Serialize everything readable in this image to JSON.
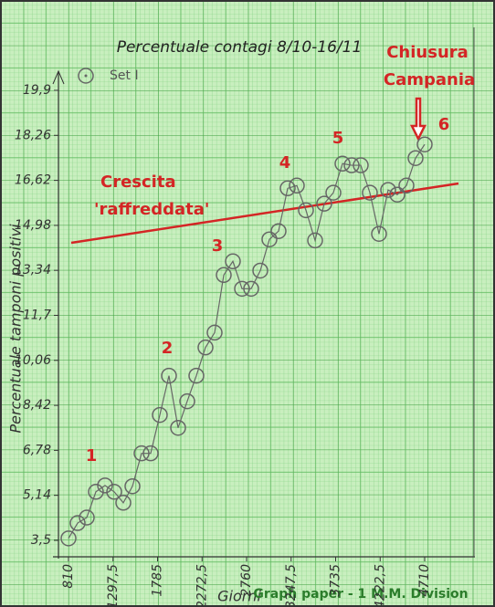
{
  "chart_data": {
    "type": "line",
    "title": "Percentuale contagi 8/10-16/11",
    "x_label": "Giorni",
    "y_label": "Percentuale tamponi positivi",
    "footer": "Graph paper - 1 M.M. Division",
    "annotations": [
      "1",
      "2",
      "3",
      "4",
      "5",
      "6",
      "Crescita",
      "'raffreddata'",
      "Chiusura",
      "Campania"
    ],
    "xlim": [
      700,
      5260
    ],
    "ylim": [
      2.9,
      19.9
    ],
    "xticks": [
      810,
      {
        "value": 1297.5,
        "label": "1297,5"
      },
      1785,
      {
        "value": 2272.5,
        "label": "2272,5"
      },
      2760,
      {
        "value": 3247.5,
        "label": "3247,5"
      },
      3735,
      {
        "value": 4222.5,
        "label": "4222,5"
      },
      4710
    ],
    "yticks": [
      {
        "value": 3.5,
        "label": "3,5"
      },
      {
        "value": 5.14,
        "label": "5,14"
      },
      {
        "value": 6.78,
        "label": "6,78"
      },
      {
        "value": 8.42,
        "label": "8,42"
      },
      {
        "value": 10.06,
        "label": "10,06"
      },
      {
        "value": 11.7,
        "label": "11,7"
      },
      {
        "value": 13.34,
        "label": "13,34"
      },
      {
        "value": 14.98,
        "label": "14,98"
      },
      {
        "value": 16.62,
        "label": "16,62"
      },
      {
        "value": 18.26,
        "label": "18,26"
      },
      {
        "value": 19.9,
        "label": "19,9"
      }
    ],
    "x": [
      810,
      910,
      1010,
      1110,
      1210,
      1310,
      1410,
      1510,
      1610,
      1710,
      1810,
      1910,
      2010,
      2110,
      2210,
      2310,
      2410,
      2510,
      2610,
      2710,
      2810,
      2910,
      3010,
      3110,
      3210,
      3310,
      3410,
      3510,
      3610,
      3710,
      3810,
      3910,
      4010,
      4110,
      4210,
      4310,
      4410,
      4510,
      4610,
      4710
    ],
    "series": [
      {
        "name": "Set I",
        "color": "#666666",
        "values": [
          3.57,
          4.13,
          4.33,
          5.27,
          5.5,
          5.27,
          4.87,
          5.47,
          6.67,
          6.67,
          8.07,
          9.5,
          7.6,
          8.57,
          9.5,
          10.53,
          11.07,
          13.17,
          13.67,
          12.67,
          12.67,
          13.33,
          14.47,
          14.77,
          16.33,
          16.43,
          15.53,
          14.43,
          15.77,
          16.17,
          17.23,
          17.17,
          17.17,
          16.17,
          14.67,
          16.27,
          16.1,
          16.43,
          17.43,
          17.93
        ]
      }
    ],
    "trend_color": "#d42525",
    "legend": "top-left"
  }
}
